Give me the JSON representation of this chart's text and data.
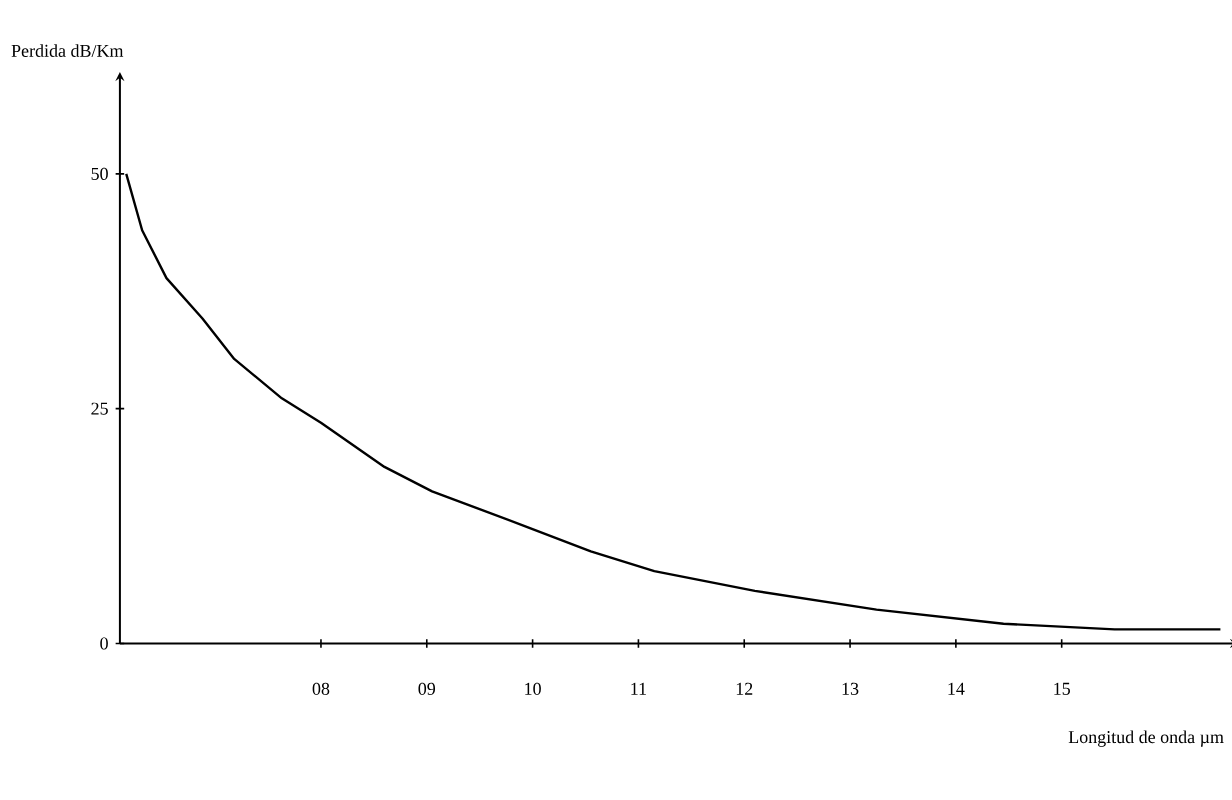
{
  "chart_data": {
    "type": "line",
    "xlabel": "Longitud de onda µm",
    "ylabel": "Perdida dB/Km",
    "color": "#000000",
    "x": [
      6.16,
      6.31,
      6.54,
      6.88,
      7.18,
      7.63,
      8.0,
      8.6,
      9.05,
      9.95,
      10.55,
      11.15,
      12.1,
      13.25,
      14.45,
      15.5,
      16.5
    ],
    "values": [
      50.0,
      44.0,
      38.9,
      34.6,
      30.3,
      26.1,
      23.5,
      18.8,
      16.2,
      12.4,
      9.8,
      7.7,
      5.6,
      3.6,
      2.1,
      1.5,
      1.5
    ],
    "xlim": [
      6.1,
      16.6
    ],
    "ylim": [
      0,
      60
    ],
    "xticks": [
      {
        "value": 8,
        "label": "08"
      },
      {
        "value": 9,
        "label": "09"
      },
      10,
      11,
      12,
      13,
      14,
      15
    ],
    "yticks": [
      0,
      25,
      50
    ]
  }
}
